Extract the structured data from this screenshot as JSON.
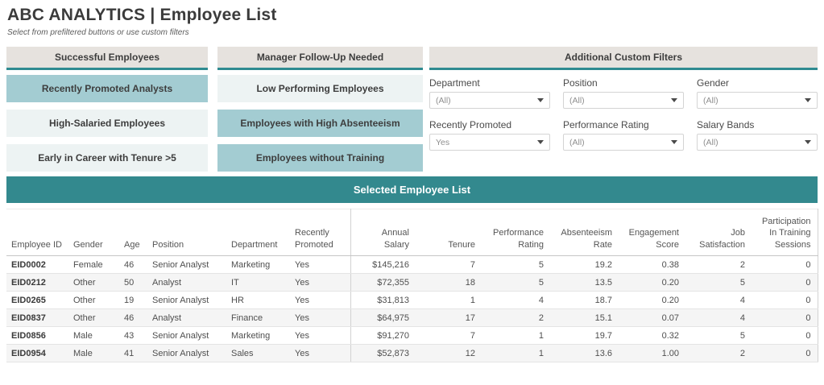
{
  "header": {
    "title": "ABC ANALYTICS  |  Employee List",
    "subtitle": "Select from prefiltered buttons or use custom filters"
  },
  "colors": {
    "accent_teal": "#33898e",
    "active_button_teal": "#a3ccd2",
    "inactive_button": "#edf3f3",
    "group_header_bg": "#e6e2de",
    "row_stripe": "#f5f5f5"
  },
  "button_groups": {
    "successful": {
      "header": "Successful Employees",
      "items": [
        {
          "label": "Recently Promoted Analysts",
          "active": true
        },
        {
          "label": "High-Salaried Employees",
          "active": false
        },
        {
          "label": "Early in Career with Tenure >5",
          "active": false
        }
      ]
    },
    "followup": {
      "header": "Manager Follow-Up Needed",
      "items": [
        {
          "label": "Low Performing Employees",
          "active": false
        },
        {
          "label": "Employees with High Absenteeism",
          "active": true
        },
        {
          "label": "Employees without Training",
          "active": true
        }
      ]
    }
  },
  "filters": {
    "header": "Additional Custom Filters",
    "items": [
      {
        "label": "Department",
        "value": "(All)"
      },
      {
        "label": "Position",
        "value": "(All)"
      },
      {
        "label": "Gender",
        "value": "(All)"
      },
      {
        "label": "Recently Promoted",
        "value": "Yes"
      },
      {
        "label": "Performance Rating",
        "value": "(All)"
      },
      {
        "label": "Salary Bands",
        "value": "(All)"
      }
    ]
  },
  "table": {
    "title": "Selected Employee List",
    "columns": [
      "Employee ID",
      "Gender",
      "Age",
      "Position",
      "Department",
      "Recently Promoted",
      "Annual Salary",
      "Tenure",
      "Performance Rating",
      "Absenteeism Rate",
      "Engagement Score",
      "Job Satisfaction",
      "Participation In Training Sessions"
    ],
    "rows": [
      [
        "EID0002",
        "Female",
        "46",
        "Senior Analyst",
        "Marketing",
        "Yes",
        "$145,216",
        "7",
        "5",
        "19.2",
        "0.38",
        "2",
        "0"
      ],
      [
        "EID0212",
        "Other",
        "50",
        "Analyst",
        "IT",
        "Yes",
        "$72,355",
        "18",
        "5",
        "13.5",
        "0.20",
        "5",
        "0"
      ],
      [
        "EID0265",
        "Other",
        "19",
        "Senior Analyst",
        "HR",
        "Yes",
        "$31,813",
        "1",
        "4",
        "18.7",
        "0.20",
        "4",
        "0"
      ],
      [
        "EID0837",
        "Other",
        "46",
        "Analyst",
        "Finance",
        "Yes",
        "$64,975",
        "17",
        "2",
        "15.1",
        "0.07",
        "4",
        "0"
      ],
      [
        "EID0856",
        "Male",
        "43",
        "Senior Analyst",
        "Marketing",
        "Yes",
        "$91,270",
        "7",
        "1",
        "19.7",
        "0.32",
        "5",
        "0"
      ],
      [
        "EID0954",
        "Male",
        "41",
        "Senior Analyst",
        "Sales",
        "Yes",
        "$52,873",
        "12",
        "1",
        "13.6",
        "1.00",
        "2",
        "0"
      ]
    ]
  }
}
